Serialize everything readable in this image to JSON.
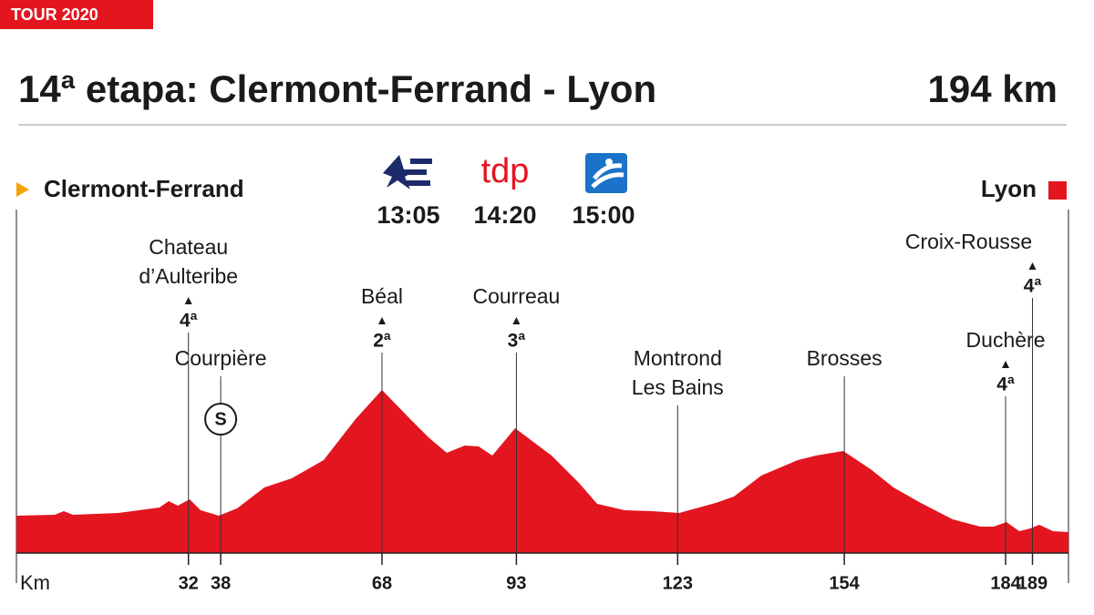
{
  "header": {
    "tag": "TOUR 2020",
    "title": "14ª etapa: Clermont-Ferrand - Lyon",
    "distance": "194 km"
  },
  "chart_data": {
    "type": "area",
    "start": "Clermont-Ferrand",
    "finish": "Lyon",
    "broadcasts": {
      "tdp_logo": "tdp",
      "times": [
        "13:05",
        "14:20",
        "15:00"
      ]
    },
    "xlabel": "Km",
    "xlim": [
      0,
      194
    ],
    "xticks": [
      32,
      38,
      68,
      93,
      123,
      154,
      184,
      189
    ],
    "color": "#e3151f",
    "points": [
      {
        "name": [
          "Chateau",
          "d’Aulteribe"
        ],
        "km": 32,
        "category": "4ª"
      },
      {
        "name": [
          "Courpière"
        ],
        "km": 38,
        "sprint": "S"
      },
      {
        "name": [
          "Béal"
        ],
        "km": 68,
        "category": "2ª"
      },
      {
        "name": [
          "Courreau"
        ],
        "km": 93,
        "category": "3ª"
      },
      {
        "name": [
          "Montrond",
          "Les Bains"
        ],
        "km": 123
      },
      {
        "name": [
          "Brosses"
        ],
        "km": 154
      },
      {
        "name": [
          "Duchère"
        ],
        "km": 184,
        "category": "4ª"
      },
      {
        "name": [
          "Croix-Rousse"
        ],
        "km": 189,
        "category": "4ª"
      }
    ]
  }
}
